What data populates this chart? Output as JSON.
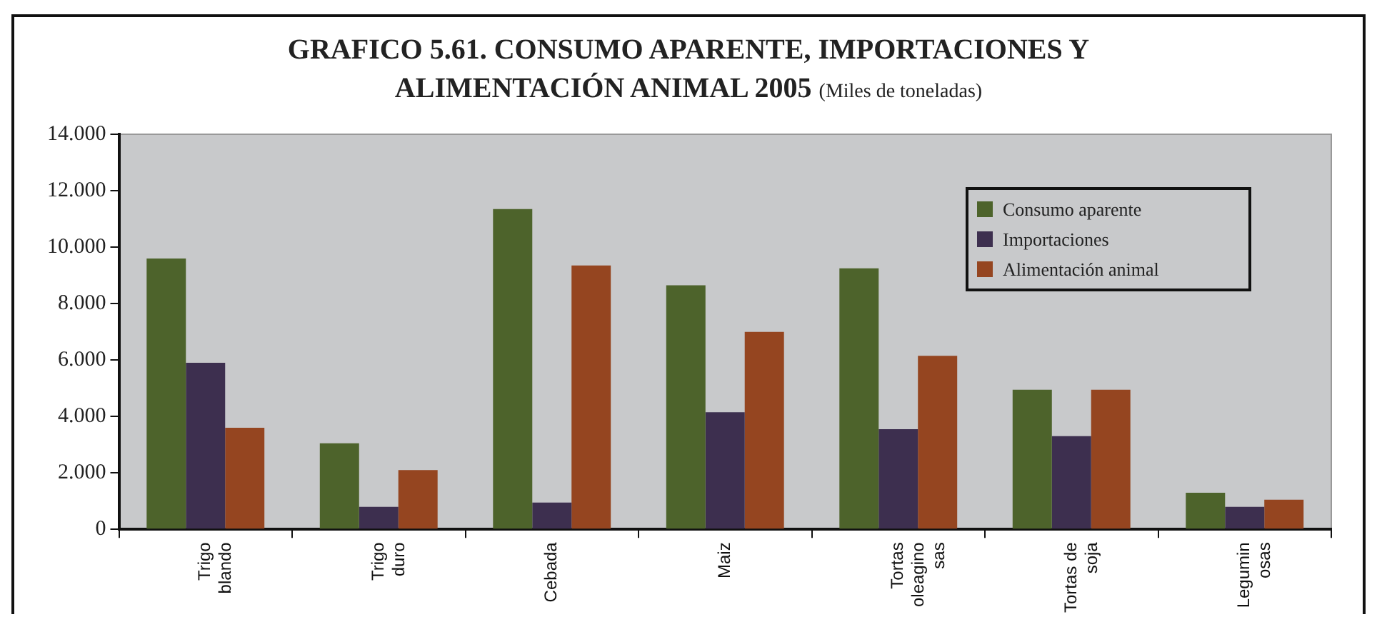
{
  "chart_data": {
    "type": "bar",
    "title": "GRAFICO 5.61. CONSUMO APARENTE, IMPORTACIONES Y ALIMENTACIÓN ANIMAL 2005",
    "subtitle": "(Miles de toneladas)",
    "categories": [
      "Trigo\nblando",
      "Trigo\nduro",
      "Cebada",
      "Maiz",
      "Tortas\noleagino\nsas",
      "Tortas de\nsoja",
      "Legumin\nosas"
    ],
    "series": [
      {
        "name": "Consumo aparente",
        "color": "#4d632b",
        "values": [
          9600,
          3050,
          11350,
          8650,
          9250,
          4950,
          1300
        ]
      },
      {
        "name": "Importaciones",
        "color": "#3d2f4f",
        "values": [
          5900,
          800,
          950,
          4150,
          3550,
          3300,
          800
        ]
      },
      {
        "name": "Alimentación animal",
        "color": "#954520",
        "values": [
          3600,
          2100,
          9350,
          7000,
          6150,
          4950,
          1050
        ]
      }
    ],
    "ylim": [
      0,
      14000
    ],
    "yticks": [
      {
        "value": 0,
        "label": "0"
      },
      {
        "value": 2000,
        "label": "2.000"
      },
      {
        "value": 4000,
        "label": "4.000"
      },
      {
        "value": 6000,
        "label": "6.000"
      },
      {
        "value": 8000,
        "label": "8.000"
      },
      {
        "value": 10000,
        "label": "10.000"
      },
      {
        "value": 12000,
        "label": "12.000"
      },
      {
        "value": 14000,
        "label": "14.000"
      }
    ],
    "grid": false,
    "legend": "top right"
  }
}
